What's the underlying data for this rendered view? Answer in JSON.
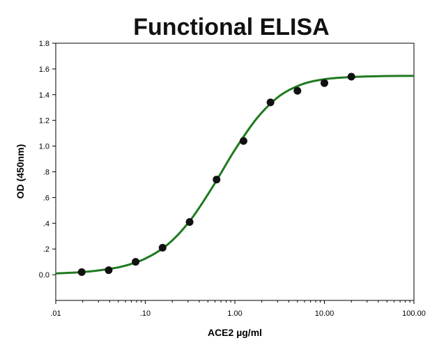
{
  "chart_data": {
    "type": "scatter",
    "title": "Functional ELISA",
    "xlabel": "ACE2 µg/ml",
    "ylabel": "OD (450nm)",
    "x_scale": "log",
    "xlim": [
      0.01,
      100
    ],
    "ylim": [
      -0.2,
      1.8
    ],
    "x_ticks": [
      {
        "value": 0.01,
        "label": ".01"
      },
      {
        "value": 0.1,
        "label": ".10"
      },
      {
        "value": 1,
        "label": "1.00"
      },
      {
        "value": 10,
        "label": "10.00"
      },
      {
        "value": 100,
        "label": "100.00"
      }
    ],
    "y_ticks": [
      {
        "value": 0.0,
        "label": "0.0"
      },
      {
        "value": 0.2,
        "label": ".2"
      },
      {
        "value": 0.4,
        "label": ".4"
      },
      {
        "value": 0.6,
        "label": ".6"
      },
      {
        "value": 0.8,
        "label": ".8"
      },
      {
        "value": 1.0,
        "label": "1.0"
      },
      {
        "value": 1.2,
        "label": "1.2"
      },
      {
        "value": 1.4,
        "label": "1.4"
      },
      {
        "value": 1.6,
        "label": "1.6"
      },
      {
        "value": 1.8,
        "label": "1.8"
      }
    ],
    "grid": false,
    "legend": "none",
    "series": [
      {
        "kind": "points",
        "color": "#111111",
        "x": [
          0.0195,
          0.039,
          0.078,
          0.156,
          0.3125,
          0.625,
          1.25,
          2.5,
          5,
          10,
          20
        ],
        "y": [
          0.02,
          0.035,
          0.1,
          0.21,
          0.41,
          0.74,
          1.04,
          1.34,
          1.43,
          1.49,
          1.54
        ]
      },
      {
        "kind": "fitted-curve",
        "color": "#1f7a1f",
        "x": [
          0.01,
          0.0178,
          0.0316,
          0.0562,
          0.1,
          0.178,
          0.316,
          0.562,
          1,
          1.78,
          3.16,
          5.62,
          10,
          17.8,
          31.6,
          56.2,
          100
        ],
        "y": [
          0.01,
          0.018,
          0.035,
          0.065,
          0.125,
          0.235,
          0.42,
          0.68,
          0.97,
          1.22,
          1.39,
          1.48,
          1.52,
          1.535,
          1.542,
          1.545,
          1.546
        ]
      }
    ]
  }
}
